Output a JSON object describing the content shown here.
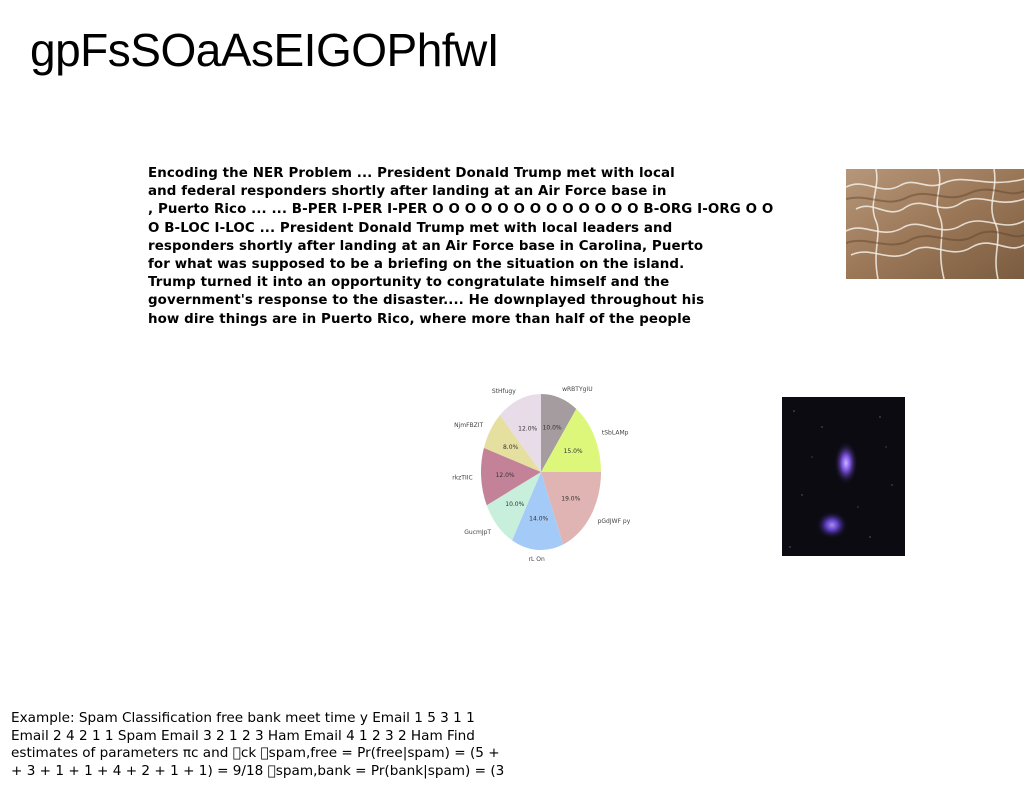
{
  "slide": {
    "title": "gpFsSOaAsEIGOPhfwI"
  },
  "ner_text": {
    "lines": [
      "Encoding the NER Problem ... President Donald Trump met with local",
      "and federal responders shortly after landing at an Air Force base in",
      ", Puerto Rico ... ... B-PER I-PER I-PER O O O O O O O O O O O O O B-ORG I-ORG O O",
      "O B-LOC I-LOC ... President Donald Trump met with local leaders and",
      "responders shortly after landing at an Air Force base in Carolina, Puerto",
      "for what was supposed to be a briefing on the situation on the island.",
      "Trump turned it into an opportunity to congratulate himself and the",
      "government's response to the disaster.... He downplayed throughout his",
      "how dire things are in Puerto Rico, where more than half of the people"
    ]
  },
  "spam_text": {
    "lines": [
      "Example: Spam Classification free bank meet time y Email 1 5 3 1 1",
      "Email 2 4 2 1 1 Spam Email 3 2 1 2 3 Ham Email 4 1 2 3 2 Ham Find",
      "estimates of parameters πc and \u0000ck \u0000spam,free = Pr(free|spam) = (5 +",
      "+ 3 + 1 + 1 + 4 + 2 + 1 + 1) = 9/18 \u0000spam,bank = Pr(bank|spam) = (3"
    ]
  },
  "chart_data": {
    "type": "pie",
    "labels": [
      "wRBTYgIU",
      "tSbLAMp",
      "pGdJWF py",
      "rL On",
      "GucmJpT",
      "rkzTIIC",
      "NjmFBZIT",
      "StHfugy"
    ],
    "values": [
      10.0,
      15.0,
      19.0,
      14.0,
      10.0,
      12.0,
      8.0,
      12.0
    ],
    "value_labels": [
      "10.0%",
      "15.0%",
      "19.0%",
      "14.0%",
      "10.0%",
      "12.0%",
      "8.0%",
      "12.0%"
    ],
    "colors": [
      "#a59c9f",
      "#dcf77a",
      "#e0b4b2",
      "#a4cbf7",
      "#c7efdc",
      "#c48299",
      "#e6e0a0",
      "#e9dce9"
    ],
    "start_angle_deg": 90,
    "direction": "clockwise"
  },
  "images": {
    "water_photo": "rippled-water-photo",
    "space_photo": "night-sky-nebula-photo"
  }
}
